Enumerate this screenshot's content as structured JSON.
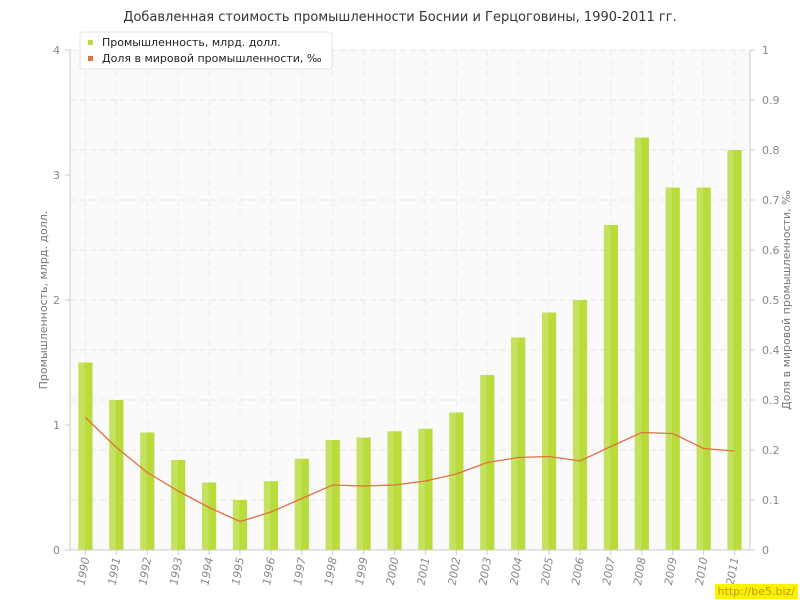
{
  "title": "Добавленная стоимость промышленности Боснии и Герцоговины, 1990-2011 гг.",
  "watermark": "http://be5.biz/",
  "chart_data": {
    "type": "bar",
    "title": "Добавленная стоимость промышленности Боснии и Герцоговины, 1990-2011 гг.",
    "categories": [
      "1990",
      "1991",
      "1992",
      "1993",
      "1994",
      "1995",
      "1996",
      "1997",
      "1998",
      "1999",
      "2000",
      "2001",
      "2002",
      "2003",
      "2004",
      "2005",
      "2006",
      "2007",
      "2008",
      "2009",
      "2010",
      "2011"
    ],
    "ylabel": "Промышленность, млрд. долл.",
    "y2label": "Доля в мировой промышленности, ‰",
    "ylim": [
      0,
      4
    ],
    "y2lim": [
      0,
      1
    ],
    "yticks": [
      "0",
      "1",
      "2",
      "3",
      "4"
    ],
    "y2ticks": [
      "0",
      "0.1",
      "0.2",
      "0.3",
      "0.4",
      "0.5",
      "0.6",
      "0.7",
      "0.8",
      "0.9",
      "1"
    ],
    "grid": true,
    "legend_position": "top-left",
    "series": [
      {
        "name": "Промышленность, млрд. долл.",
        "type": "bar",
        "axis": "left",
        "color": "#b9dc3c",
        "values": [
          1.5,
          1.2,
          0.94,
          0.72,
          0.54,
          0.4,
          0.55,
          0.73,
          0.88,
          0.9,
          0.95,
          0.97,
          1.1,
          1.4,
          1.7,
          1.9,
          2.0,
          2.6,
          3.3,
          2.9,
          2.9,
          3.2
        ]
      },
      {
        "name": "Доля в мировой промышленности, ‰",
        "type": "line",
        "axis": "right",
        "color": "#e07040",
        "values": [
          0.265,
          0.205,
          0.155,
          0.118,
          0.085,
          0.057,
          0.076,
          0.103,
          0.13,
          0.128,
          0.13,
          0.138,
          0.152,
          0.175,
          0.185,
          0.187,
          0.178,
          0.207,
          0.235,
          0.233,
          0.203,
          0.198
        ]
      }
    ]
  }
}
